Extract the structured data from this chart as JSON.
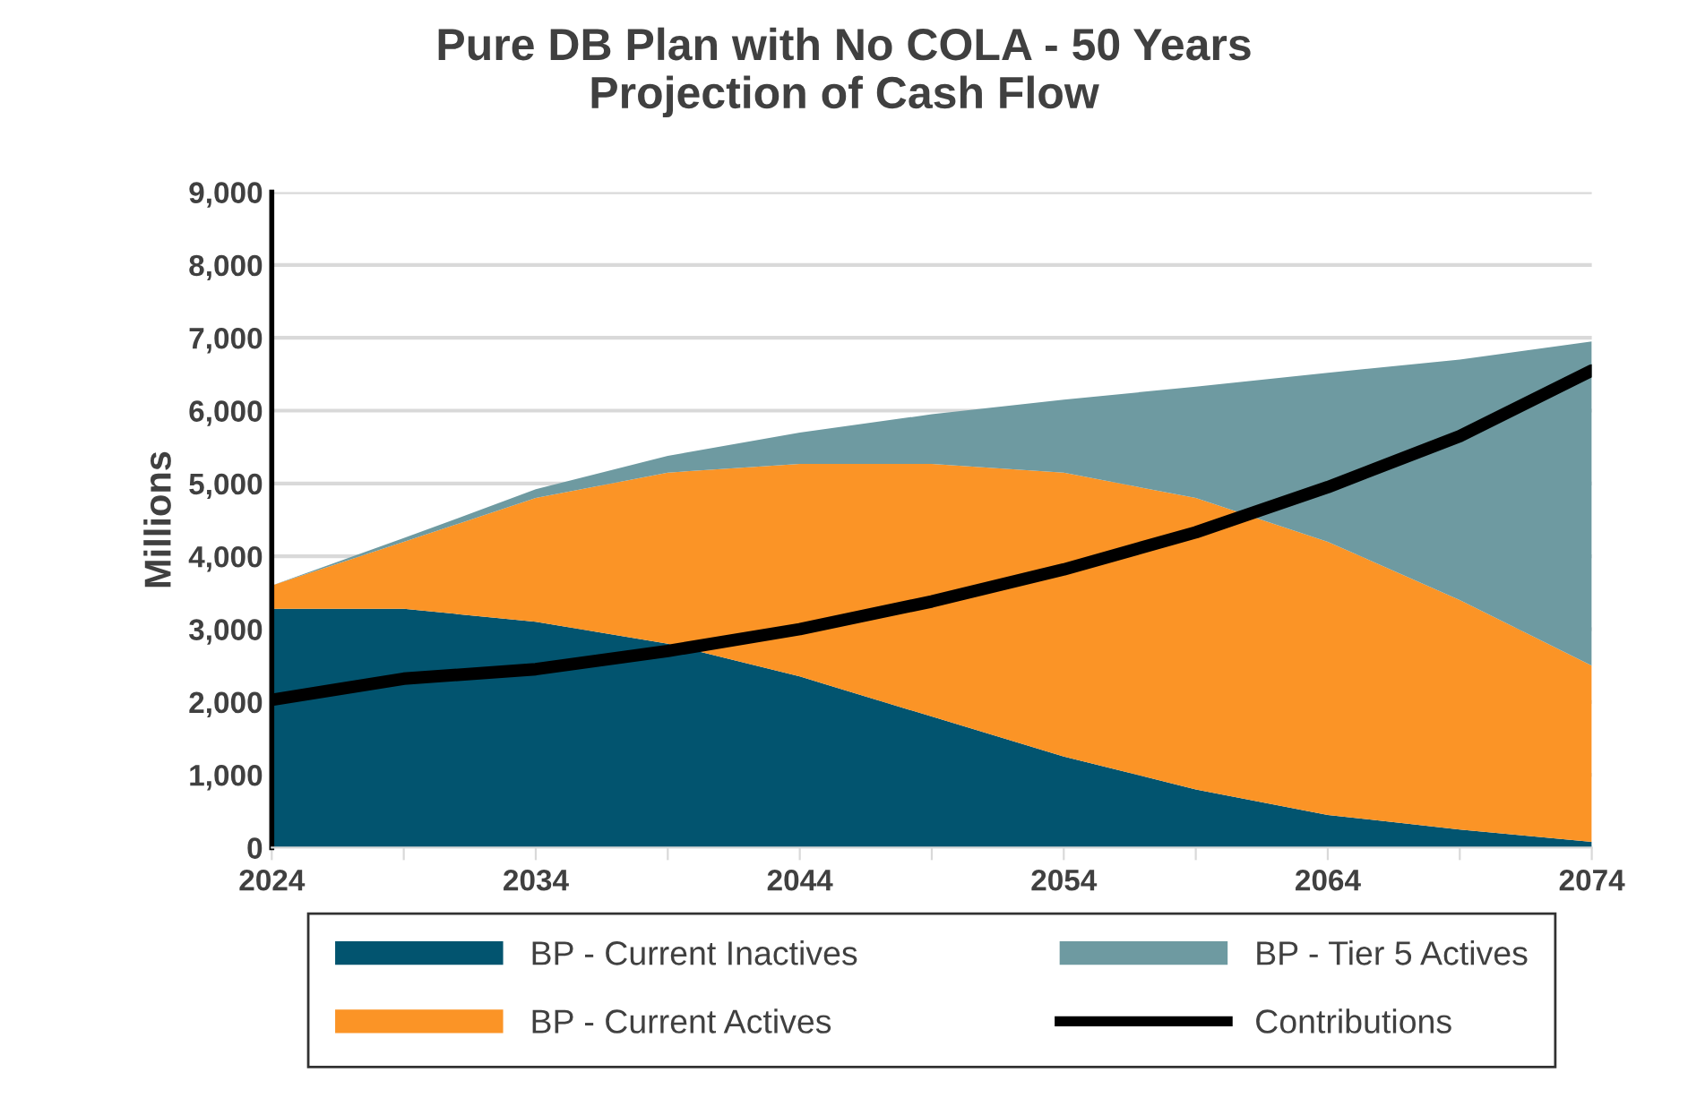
{
  "chart_data": {
    "type": "area",
    "stacked": true,
    "title": "Pure DB Plan with No COLA - 50 Years\nProjection of Cash Flow",
    "ylabel": "Millions",
    "x": [
      2024,
      2029,
      2034,
      2039,
      2044,
      2049,
      2054,
      2059,
      2064,
      2069,
      2074
    ],
    "series": [
      {
        "name": "BP - Current Inactives",
        "color": "#02546f",
        "values": [
          3280,
          3280,
          3100,
          2800,
          2350,
          1800,
          1250,
          800,
          450,
          250,
          80
        ]
      },
      {
        "name": "BP - Current Actives",
        "color": "#fb9426",
        "values": [
          320,
          920,
          1700,
          2350,
          2920,
          3470,
          3900,
          4000,
          3750,
          3150,
          2420
        ]
      },
      {
        "name": "BP - Tier 5 Actives",
        "color": "#6e9aa1",
        "values": [
          0,
          50,
          120,
          230,
          430,
          680,
          1000,
          1530,
          2320,
          3300,
          4450
        ]
      },
      {
        "name": "Contributions",
        "type": "line",
        "color": "#000000",
        "values": [
          2030,
          2320,
          2450,
          2700,
          3000,
          3380,
          3820,
          4330,
          4950,
          5650,
          6550
        ]
      }
    ],
    "xlim": [
      2024,
      2074
    ],
    "ylim": [
      0,
      9000
    ],
    "xticks": [
      2024,
      {
        "value": 2029,
        "label": null
      },
      2034,
      {
        "value": 2039,
        "label": null
      },
      2044,
      {
        "value": 2049,
        "label": null
      },
      2054,
      {
        "value": 2059,
        "label": null
      },
      2064,
      {
        "value": 2069,
        "label": null
      },
      2074
    ],
    "yticks": [
      {
        "value": 0,
        "label": "0"
      },
      {
        "value": 1000,
        "label": "1,000"
      },
      {
        "value": 2000,
        "label": "2,000"
      },
      {
        "value": 3000,
        "label": "3,000"
      },
      {
        "value": 4000,
        "label": "4,000"
      },
      {
        "value": 5000,
        "label": "5,000"
      },
      {
        "value": 6000,
        "label": "6,000"
      },
      {
        "value": 7000,
        "label": "7,000"
      },
      {
        "value": 8000,
        "label": "8,000"
      },
      {
        "value": 9000,
        "label": "9,000"
      }
    ],
    "grid": "y",
    "legend": "bottom"
  }
}
